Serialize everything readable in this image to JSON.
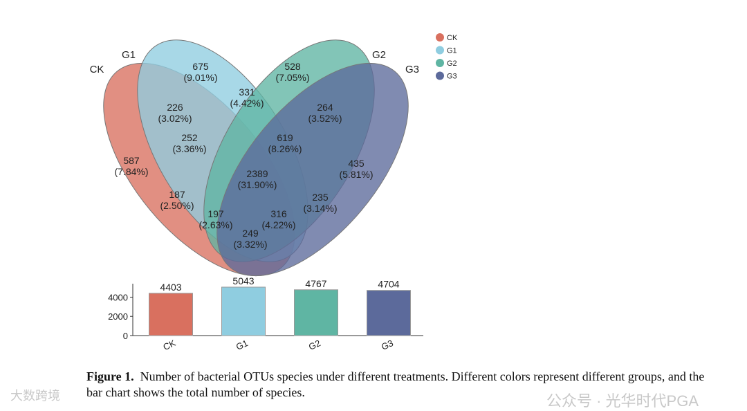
{
  "chart_data": [
    {
      "type": "venn",
      "sets": [
        "CK",
        "G1",
        "G2",
        "G3"
      ],
      "colors": {
        "CK": "#d9705f",
        "G1": "#8fcde0",
        "G2": "#5fb5a3",
        "G3": "#5c6a9b"
      },
      "regions": [
        {
          "sets": "CK only",
          "count": "587",
          "pct": "(7.84%)"
        },
        {
          "sets": "G1 only",
          "count": "675",
          "pct": "(9.01%)"
        },
        {
          "sets": "G2 only",
          "count": "528",
          "pct": "(7.05%)"
        },
        {
          "sets": "G3 only",
          "count": "435",
          "pct": "(5.81%)"
        },
        {
          "sets": "CK∩G1",
          "count": "226",
          "pct": "(3.02%)"
        },
        {
          "sets": "G1∩G2",
          "count": "331",
          "pct": "(4.42%)"
        },
        {
          "sets": "G2∩G3",
          "count": "264",
          "pct": "(3.52%)"
        },
        {
          "sets": "CK∩G1∩G2",
          "count": "252",
          "pct": "(3.36%)"
        },
        {
          "sets": "G1∩G2∩G3",
          "count": "619",
          "pct": "(8.26%)"
        },
        {
          "sets": "all",
          "count": "2389",
          "pct": "(31.90%)"
        },
        {
          "sets": "CK∩G2",
          "count": "187",
          "pct": "(2.50%)"
        },
        {
          "sets": "G1∩G3",
          "count": "235",
          "pct": "(3.14%)"
        },
        {
          "sets": "CK∩G2∩G3",
          "count": "197",
          "pct": "(2.63%)"
        },
        {
          "sets": "CK∩G1∩G3",
          "count": "316",
          "pct": "(4.22%)"
        },
        {
          "sets": "CK∩G3",
          "count": "249",
          "pct": "(3.32%)"
        }
      ],
      "legend": [
        "CK",
        "G1",
        "G2",
        "G3"
      ],
      "legend_position": "top-right"
    },
    {
      "type": "bar",
      "categories": [
        "CK",
        "G1",
        "G2",
        "G3"
      ],
      "values": [
        4403,
        5043,
        4767,
        4704
      ],
      "yticks": [
        "0",
        "2000",
        "4000"
      ],
      "ylim": [
        0,
        5400
      ]
    }
  ],
  "caption": {
    "label": "Figure 1.",
    "text": "Number of bacterial OTUs species under different treatments. Different colors represent different groups, and the bar chart shows the total number of species."
  },
  "watermarks": [
    "公众号 · 光华时代PGA",
    "大数跨境"
  ]
}
